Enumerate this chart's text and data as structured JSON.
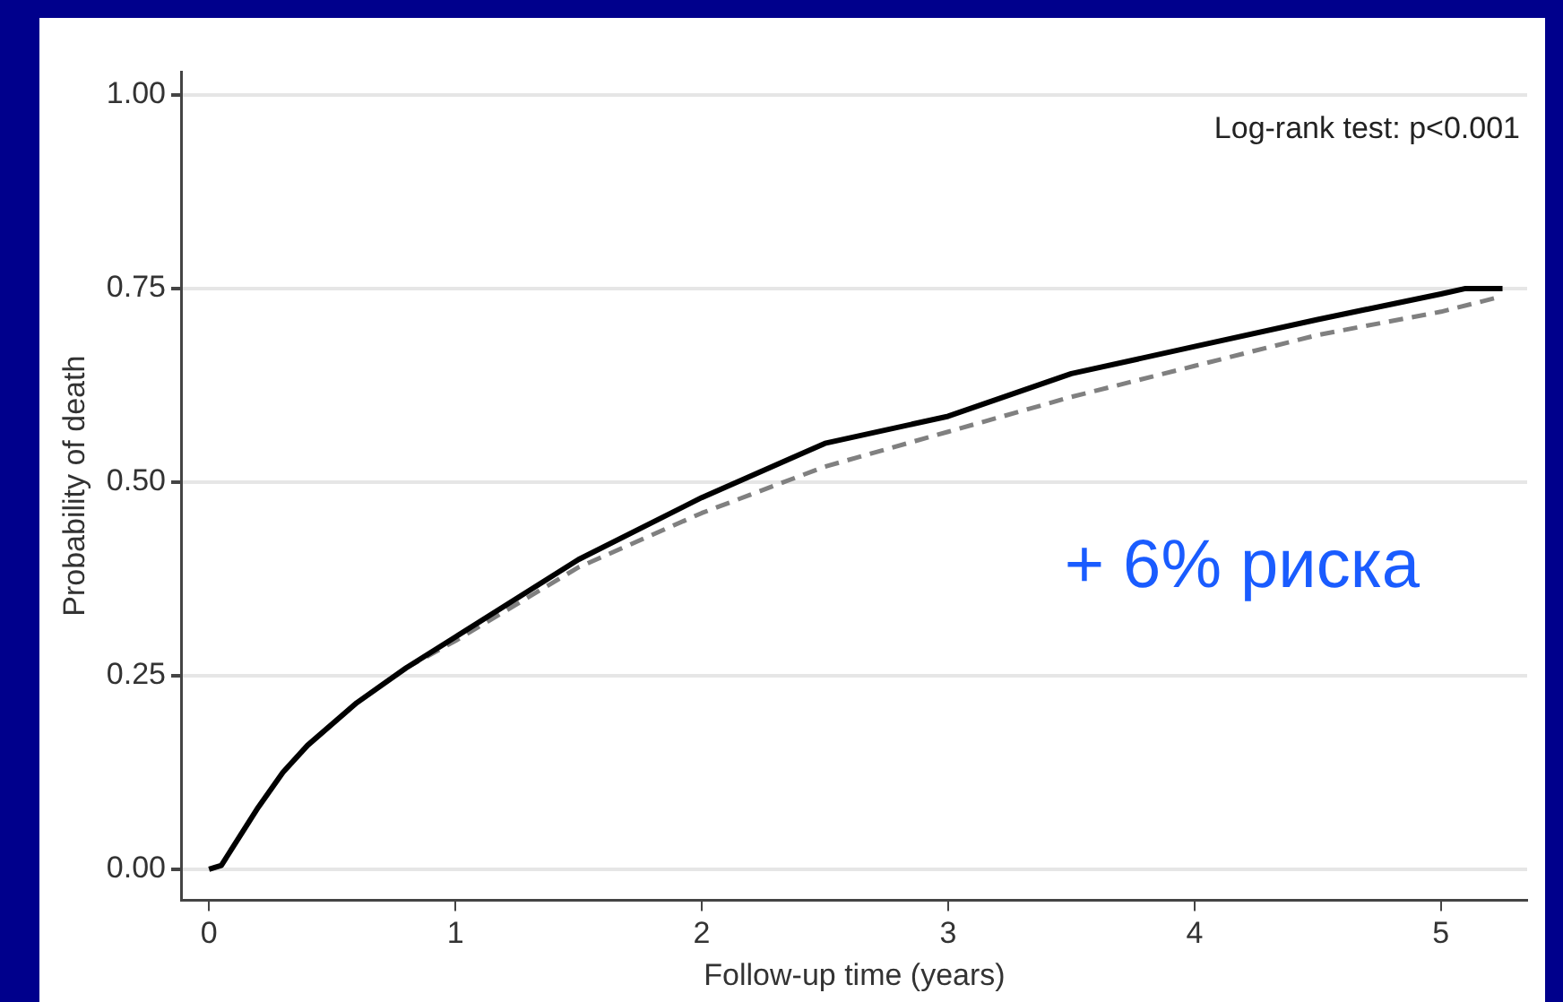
{
  "chart_data": {
    "type": "line",
    "xlabel": "Follow-up time (years)",
    "ylabel": "Probability of death",
    "xlim": [
      -0.11,
      5.35
    ],
    "ylim": [
      -0.04,
      1.03
    ],
    "xticks": [
      0,
      1,
      2,
      3,
      4,
      5
    ],
    "yticks": [
      {
        "value": 0,
        "label": "0.00"
      },
      {
        "value": 0.25,
        "label": "0.25"
      },
      {
        "value": 0.5,
        "label": "0.50"
      },
      {
        "value": 0.75,
        "label": "0.75"
      },
      {
        "value": 1,
        "label": "1.00"
      }
    ],
    "grid": "y",
    "legend": false,
    "marker": "none",
    "series": [
      {
        "color": "#000000",
        "line_style": "solid",
        "x": [
          0,
          0.05,
          0.1,
          0.2,
          0.3,
          0.4,
          0.6,
          0.8,
          1.0,
          1.5,
          2.0,
          2.5,
          3.0,
          3.5,
          4.0,
          4.5,
          5.0,
          5.1,
          5.25
        ],
        "values": [
          0,
          0.005,
          0.03,
          0.08,
          0.125,
          0.16,
          0.215,
          0.26,
          0.3,
          0.4,
          0.48,
          0.55,
          0.585,
          0.64,
          0.675,
          0.71,
          0.743,
          0.75,
          0.75
        ]
      },
      {
        "color": "#808080",
        "line_style": "dashed",
        "x": [
          0.8,
          1.0,
          1.5,
          2.0,
          2.5,
          3.0,
          3.5,
          4.0,
          4.5,
          5.0,
          5.25
        ],
        "values": [
          0.26,
          0.295,
          0.39,
          0.46,
          0.52,
          0.565,
          0.61,
          0.65,
          0.69,
          0.72,
          0.74
        ]
      }
    ],
    "annotations": [
      "Log-rank test: p<0.001",
      "+ 6% риска"
    ]
  }
}
